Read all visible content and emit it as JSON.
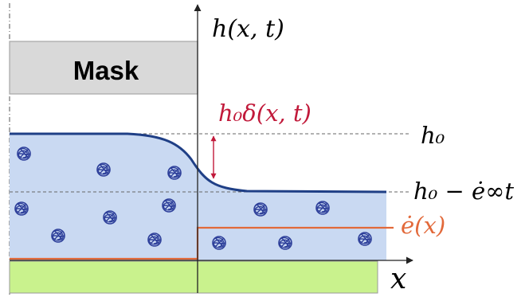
{
  "diagram": {
    "mask": {
      "label": "Mask"
    },
    "labels": {
      "axis_y": "h(x, t)",
      "axis_x": "x",
      "delta": "h₀δ(x, t)",
      "h0": "h₀",
      "h0_minus": "h₀ − ė∞t",
      "edot": "ė(x)"
    },
    "colors": {
      "fluid_fill": "#c9d9f2",
      "profile_line": "#1f3f86",
      "substrate": "#c9f28d",
      "mask_fill": "#d9d9d9",
      "delta_color": "#c1193a",
      "edot_color": "#e2693a",
      "particle_color": "#2d3f9a"
    }
  }
}
